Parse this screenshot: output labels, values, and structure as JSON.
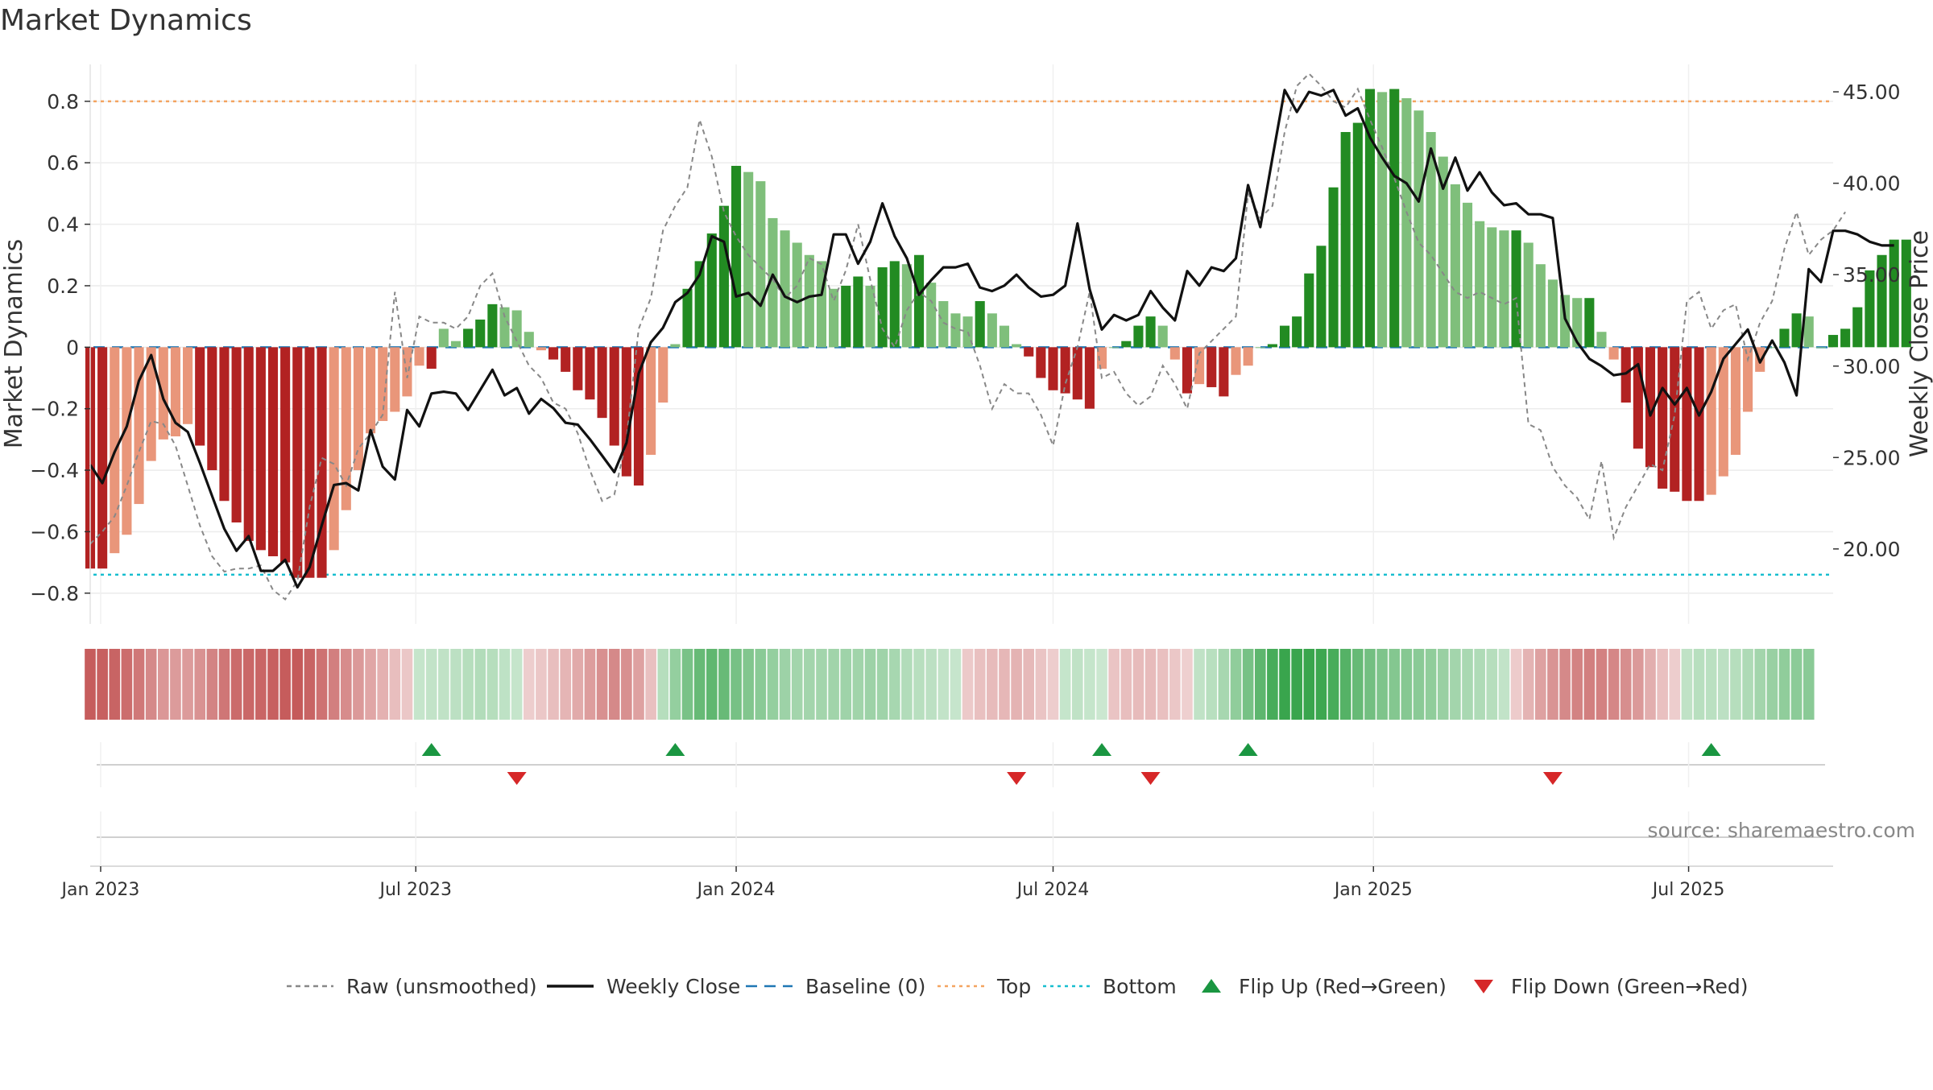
{
  "chart_data": {
    "type": "bar",
    "title": "Market Dynamics",
    "ylabel_left": "Market Dynamics",
    "ylabel_right": "Weekly Close Price",
    "source": "source: sharemaestro.com",
    "y_left": {
      "range": [
        -0.9,
        0.92
      ],
      "ticks": [
        0.8,
        0.6,
        0.4,
        0.2,
        0,
        -0.2,
        -0.4,
        -0.6,
        -0.8
      ],
      "tick_labels": [
        "0.8",
        "0.6",
        "0.4",
        "0.2",
        "0",
        "−0.2",
        "−0.4",
        "−0.6",
        "−0.8"
      ]
    },
    "y_right": {
      "range": [
        15.9,
        46.5
      ],
      "ticks": [
        45,
        40,
        35,
        30,
        25,
        20
      ],
      "tick_labels": [
        "45.00",
        "40.00",
        "35.00",
        "30.00",
        "25.00",
        "20.00"
      ]
    },
    "x_axis": {
      "type": "date",
      "range": [
        "2022-12-26",
        "2025-09-22"
      ],
      "ticks": [
        "2023-01-01",
        "2023-07-01",
        "2024-01-01",
        "2024-07-01",
        "2025-01-01",
        "2025-07-01"
      ],
      "tick_labels": [
        "Jan 2023",
        "Jul 2023",
        "Jan 2024",
        "Jul 2024",
        "Jan 2025",
        "Jul 2025"
      ]
    },
    "reference_lines": {
      "baseline": 0,
      "top": 0.8,
      "bottom": -0.74
    },
    "grid": true,
    "legend_position": "bottom-center",
    "colors": {
      "strong_negative": "#b22222",
      "weak_negative": "#e9967a",
      "strong_positive": "#228b22",
      "weak_positive": "#7fbf7b",
      "weekly_close": "#111111",
      "raw": "#888888",
      "baseline": "#1f77b4",
      "top": "#f4a460",
      "bottom": "#17becf",
      "flip_up": "#1a9641",
      "flip_down": "#d62728"
    },
    "bars": {
      "start_date": "2022-12-26",
      "interval_days": 7,
      "values": [
        -0.72,
        -0.72,
        -0.67,
        -0.61,
        -0.51,
        -0.37,
        -0.3,
        -0.29,
        -0.25,
        -0.32,
        -0.4,
        -0.5,
        -0.57,
        -0.63,
        -0.66,
        -0.68,
        -0.7,
        -0.75,
        -0.75,
        -0.75,
        -0.66,
        -0.53,
        -0.4,
        -0.28,
        -0.24,
        -0.21,
        -0.16,
        -0.06,
        -0.07,
        0.06,
        0.02,
        0.06,
        0.09,
        0.14,
        0.13,
        0.12,
        0.05,
        -0.01,
        -0.04,
        -0.08,
        -0.14,
        -0.17,
        -0.23,
        -0.32,
        -0.42,
        -0.45,
        -0.35,
        -0.18,
        0.01,
        0.19,
        0.28,
        0.37,
        0.46,
        0.59,
        0.57,
        0.54,
        0.42,
        0.38,
        0.34,
        0.3,
        0.28,
        0.19,
        0.2,
        0.23,
        0.2,
        0.26,
        0.28,
        0.27,
        0.3,
        0.21,
        0.15,
        0.11,
        0.1,
        0.15,
        0.11,
        0.07,
        0.01,
        -0.03,
        -0.1,
        -0.14,
        -0.15,
        -0.17,
        -0.2,
        -0.07,
        0.0,
        0.02,
        0.07,
        0.1,
        0.07,
        -0.04,
        -0.15,
        -0.12,
        -0.13,
        -0.16,
        -0.09,
        -0.06,
        0.0,
        0.01,
        0.07,
        0.1,
        0.24,
        0.33,
        0.52,
        0.7,
        0.73,
        0.84,
        0.83,
        0.84,
        0.81,
        0.77,
        0.7,
        0.62,
        0.53,
        0.47,
        0.41,
        0.39,
        0.38,
        0.38,
        0.34,
        0.27,
        0.22,
        0.17,
        0.16,
        0.16,
        0.05,
        -0.04,
        -0.18,
        -0.33,
        -0.39,
        -0.46,
        -0.47,
        -0.5,
        -0.5,
        -0.48,
        -0.42,
        -0.35,
        -0.21,
        -0.08,
        0.0,
        0.06,
        0.11,
        0.1,
        0.0,
        0.04,
        0.06,
        0.13,
        0.25,
        0.3,
        0.35,
        0.35
      ]
    },
    "series": [
      {
        "name": "Raw (unsmoothed)",
        "style": "dashed",
        "values": [
          -0.64,
          -0.6,
          -0.55,
          -0.45,
          -0.34,
          -0.24,
          -0.25,
          -0.32,
          -0.45,
          -0.58,
          -0.68,
          -0.73,
          -0.72,
          -0.72,
          -0.71,
          -0.79,
          -0.82,
          -0.76,
          -0.52,
          -0.36,
          -0.38,
          -0.45,
          -0.33,
          -0.28,
          -0.22,
          0.18,
          -0.1,
          0.1,
          0.08,
          0.08,
          0.06,
          0.1,
          0.2,
          0.24,
          0.1,
          0.02,
          -0.06,
          -0.1,
          -0.18,
          -0.2,
          -0.28,
          -0.4,
          -0.5,
          -0.48,
          -0.3,
          0.06,
          0.16,
          0.38,
          0.46,
          0.52,
          0.74,
          0.62,
          0.44,
          0.36,
          0.3,
          0.26,
          0.22,
          0.16,
          0.2,
          0.29,
          0.27,
          0.15,
          0.25,
          0.4,
          0.22,
          0.06,
          0.0,
          0.12,
          0.18,
          0.15,
          0.08,
          0.06,
          0.05,
          -0.06,
          -0.2,
          -0.12,
          -0.15,
          -0.15,
          -0.22,
          -0.32,
          -0.12,
          0.0,
          0.18,
          -0.1,
          -0.08,
          -0.15,
          -0.19,
          -0.16,
          -0.06,
          -0.12,
          -0.2,
          -0.02,
          0.02,
          0.06,
          0.1,
          0.5,
          0.42,
          0.46,
          0.7,
          0.85,
          0.89,
          0.85,
          0.8,
          0.78,
          0.84,
          0.74,
          0.65,
          0.55,
          0.44,
          0.34,
          0.3,
          0.24,
          0.18,
          0.16,
          0.18,
          0.16,
          0.14,
          0.16,
          -0.25,
          -0.27,
          -0.39,
          -0.45,
          -0.49,
          -0.56,
          -0.37,
          -0.62,
          -0.52,
          -0.45,
          -0.38,
          -0.4,
          -0.22,
          0.15,
          0.18,
          0.06,
          0.12,
          0.14,
          -0.04,
          0.08,
          0.15,
          0.32,
          0.44,
          0.3,
          0.35,
          0.38,
          0.44
        ]
      },
      {
        "name": "Weekly Close",
        "style": "solid",
        "axis": "right",
        "values": [
          24.6,
          23.6,
          25.3,
          26.7,
          29.2,
          30.6,
          28.2,
          26.9,
          26.4,
          24.7,
          22.9,
          21.1,
          19.9,
          20.7,
          18.8,
          18.8,
          19.4,
          17.9,
          19.0,
          21.3,
          23.5,
          23.6,
          23.2,
          26.5,
          24.5,
          23.8,
          27.6,
          26.7,
          28.5,
          28.6,
          28.5,
          27.6,
          28.7,
          29.8,
          28.4,
          28.8,
          27.4,
          28.2,
          27.7,
          26.9,
          26.8,
          26.0,
          25.1,
          24.2,
          25.8,
          29.6,
          31.3,
          32.1,
          33.5,
          34.0,
          35.0,
          37.1,
          36.8,
          33.8,
          34.0,
          33.3,
          35.0,
          33.8,
          33.5,
          33.8,
          33.9,
          37.2,
          37.2,
          35.6,
          36.8,
          38.9,
          37.1,
          35.9,
          33.9,
          34.7,
          35.4,
          35.4,
          35.6,
          34.3,
          34.1,
          34.4,
          35.0,
          34.3,
          33.8,
          33.9,
          34.4,
          37.8,
          34.2,
          32.0,
          32.8,
          32.5,
          32.8,
          34.1,
          33.2,
          32.5,
          35.2,
          34.4,
          35.4,
          35.2,
          35.9,
          39.9,
          37.6,
          41.4,
          45.1,
          43.9,
          45.0,
          44.8,
          45.1,
          43.7,
          44.1,
          42.5,
          41.4,
          40.4,
          40.0,
          39.0,
          41.9,
          39.7,
          41.4,
          39.6,
          40.6,
          39.5,
          38.8,
          38.9,
          38.3,
          38.3,
          38.1,
          32.6,
          31.3,
          30.4,
          30.0,
          29.5,
          29.6,
          30.1,
          27.3,
          28.8,
          27.9,
          28.8,
          27.3,
          28.6,
          30.4,
          31.2,
          32.0,
          30.2,
          31.4,
          30.2,
          28.4,
          35.3,
          34.6,
          37.4,
          37.4,
          37.2,
          36.8,
          36.6,
          36.6
        ]
      }
    ],
    "heat_strip": {
      "values": [
        -0.72,
        -0.7,
        -0.67,
        -0.62,
        -0.55,
        -0.45,
        -0.36,
        -0.33,
        -0.33,
        -0.39,
        -0.48,
        -0.56,
        -0.63,
        -0.65,
        -0.66,
        -0.7,
        -0.72,
        -0.73,
        -0.68,
        -0.58,
        -0.5,
        -0.42,
        -0.34,
        -0.26,
        -0.19,
        -0.11,
        -0.06,
        0.03,
        0.05,
        0.06,
        0.08,
        0.12,
        0.14,
        0.12,
        0.07,
        0.04,
        -0.02,
        -0.06,
        -0.12,
        -0.17,
        -0.24,
        -0.32,
        -0.4,
        -0.44,
        -0.4,
        -0.3,
        -0.1,
        0.12,
        0.3,
        0.44,
        0.55,
        0.58,
        0.54,
        0.46,
        0.4,
        0.35,
        0.3,
        0.25,
        0.22,
        0.22,
        0.22,
        0.23,
        0.24,
        0.23,
        0.25,
        0.24,
        0.2,
        0.14,
        0.1,
        0.08,
        0.05,
        0.02,
        -0.05,
        -0.1,
        -0.14,
        -0.16,
        -0.18,
        -0.15,
        -0.08,
        -0.02,
        0.04,
        0.06,
        0.04,
        0.0,
        -0.08,
        -0.12,
        -0.14,
        -0.14,
        -0.1,
        -0.06,
        -0.01,
        0.06,
        0.1,
        0.2,
        0.32,
        0.46,
        0.6,
        0.72,
        0.8,
        0.82,
        0.82,
        0.78,
        0.72,
        0.64,
        0.55,
        0.48,
        0.42,
        0.39,
        0.38,
        0.36,
        0.32,
        0.27,
        0.22,
        0.18,
        0.15,
        0.12,
        0.05,
        -0.04,
        -0.18,
        -0.3,
        -0.38,
        -0.44,
        -0.48,
        -0.5,
        -0.49,
        -0.46,
        -0.41,
        -0.34,
        -0.22,
        -0.1,
        -0.02,
        0.06,
        0.1,
        0.09,
        0.08,
        0.12,
        0.16,
        0.22,
        0.28,
        0.32,
        0.34,
        0.35
      ]
    },
    "flips": {
      "up": [
        "2023-07-10",
        "2023-11-27",
        "2024-07-29",
        "2024-10-21",
        "2025-07-14"
      ],
      "down": [
        "2023-08-28",
        "2024-06-10",
        "2024-08-26",
        "2025-04-14"
      ]
    },
    "legend": [
      {
        "label": "Raw (unsmoothed)",
        "marker": "dashed-line",
        "color": "#888888"
      },
      {
        "label": "Weekly Close",
        "marker": "solid-line",
        "color": "#111111"
      },
      {
        "label": "Baseline (0)",
        "marker": "long-dash-line",
        "color": "#1f77b4"
      },
      {
        "label": "Top",
        "marker": "dotted-line",
        "color": "#f4a460"
      },
      {
        "label": "Bottom",
        "marker": "dotted-line",
        "color": "#17becf"
      },
      {
        "label": "Flip Up (Red→Green)",
        "marker": "triangle-up",
        "color": "#1a9641"
      },
      {
        "label": "Flip Down (Green→Red)",
        "marker": "triangle-down",
        "color": "#d62728"
      }
    ]
  }
}
